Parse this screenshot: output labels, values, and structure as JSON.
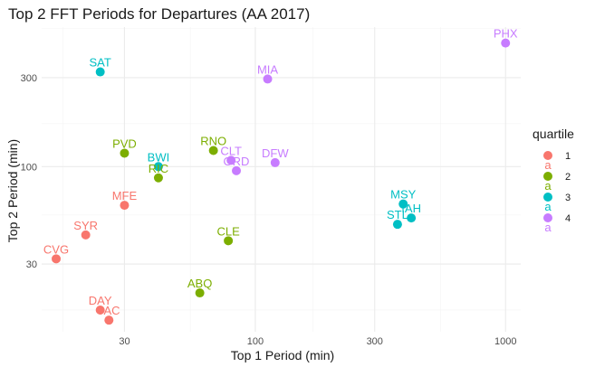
{
  "chart_data": {
    "type": "scatter",
    "title": "Top 2 FFT Periods for Departures (AA 2017)",
    "xlabel": "Top 1 Period (min)",
    "ylabel": "Top 2 Period (min)",
    "x_scale": "log10",
    "y_scale": "log10",
    "xlim": [
      14,
      1150
    ],
    "ylim": [
      13,
      560
    ],
    "x_ticks": [
      30,
      100,
      300,
      1000
    ],
    "x_tick_labels": [
      "30",
      "100",
      "300",
      "1000"
    ],
    "x_minor_ticks": [
      17,
      55,
      170,
      550
    ],
    "y_ticks": [
      30,
      100,
      300
    ],
    "y_tick_labels": [
      "30",
      "100",
      "300"
    ],
    "y_minor_ticks": [
      17,
      55,
      170,
      550
    ],
    "grid": true,
    "legend": {
      "title": "quartile",
      "position": "right",
      "key_glyph_letter": "a",
      "entries": [
        {
          "label": "1",
          "color": "#F8766D"
        },
        {
          "label": "2",
          "color": "#7CAE00"
        },
        {
          "label": "3",
          "color": "#00BFC4"
        },
        {
          "label": "4",
          "color": "#C77CFF"
        }
      ]
    },
    "points": [
      {
        "label": "SAT",
        "x": 24,
        "y": 322,
        "quartile": "3"
      },
      {
        "label": "MIA",
        "x": 112,
        "y": 295,
        "quartile": "4"
      },
      {
        "label": "PHX",
        "x": 1000,
        "y": 460,
        "quartile": "4"
      },
      {
        "label": "PVD",
        "x": 30,
        "y": 118,
        "quartile": "2"
      },
      {
        "label": "RNO",
        "x": 68,
        "y": 122,
        "quartile": "2"
      },
      {
        "label": "CLT",
        "x": 80,
        "y": 108,
        "quartile": "4"
      },
      {
        "label": "DFW",
        "x": 120,
        "y": 105,
        "quartile": "4"
      },
      {
        "label": "BWI",
        "x": 41,
        "y": 100,
        "quartile": "3"
      },
      {
        "label": "RIC",
        "x": 41,
        "y": 87,
        "quartile": "2"
      },
      {
        "label": "ORD",
        "x": 84,
        "y": 95,
        "quartile": "4"
      },
      {
        "label": "MFE",
        "x": 30,
        "y": 62,
        "quartile": "1"
      },
      {
        "label": "SYR",
        "x": 21,
        "y": 43,
        "quartile": "1"
      },
      {
        "label": "CVG",
        "x": 16,
        "y": 32,
        "quartile": "1"
      },
      {
        "label": "CLE",
        "x": 78,
        "y": 40,
        "quartile": "2"
      },
      {
        "label": "MSY",
        "x": 390,
        "y": 63,
        "quartile": "3"
      },
      {
        "label": "IAH",
        "x": 420,
        "y": 53,
        "quartile": "3"
      },
      {
        "label": "STL",
        "x": 370,
        "y": 49,
        "quartile": "3"
      },
      {
        "label": "ABQ",
        "x": 60,
        "y": 21,
        "quartile": "2"
      },
      {
        "label": "DAY",
        "x": 24,
        "y": 17,
        "quartile": "1"
      },
      {
        "label": "JAC",
        "x": 26,
        "y": 15,
        "quartile": "1"
      }
    ]
  }
}
